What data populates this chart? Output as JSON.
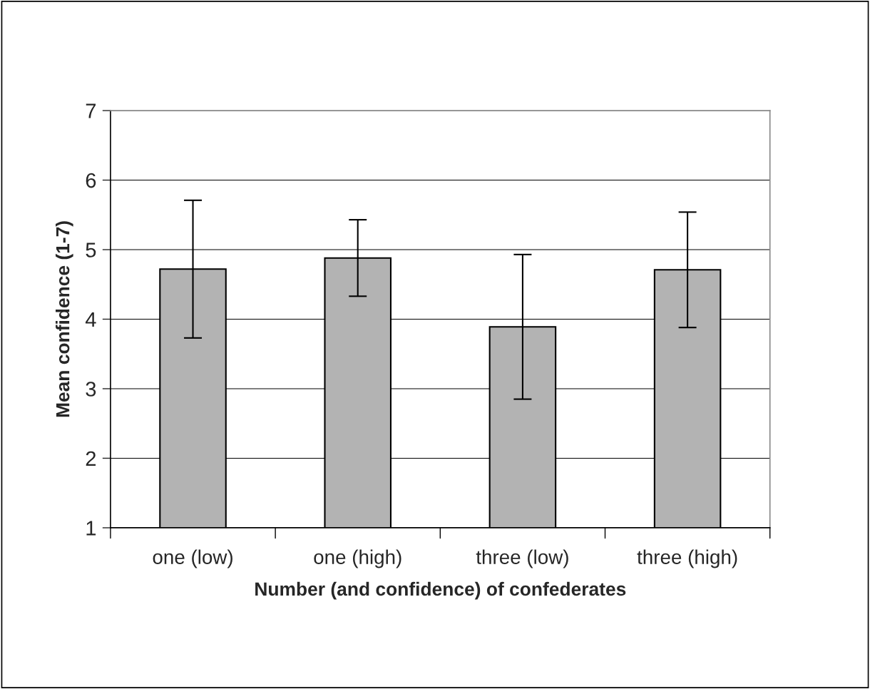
{
  "chart_data": {
    "type": "bar",
    "xlabel": "Number (and confidence) of confederates",
    "ylabel": "Mean confidence (1-7)",
    "categories": [
      "one (low)",
      "one (high)",
      "three (low)",
      "three (high)"
    ],
    "values": [
      4.72,
      4.88,
      3.89,
      4.71
    ],
    "errors": [
      0.99,
      0.55,
      1.04,
      0.83
    ],
    "color": "#b3b3b3",
    "ylim": [
      1,
      7
    ],
    "yticks": [
      1,
      2,
      3,
      4,
      5,
      6,
      7
    ],
    "grid": "y",
    "legend": false
  }
}
